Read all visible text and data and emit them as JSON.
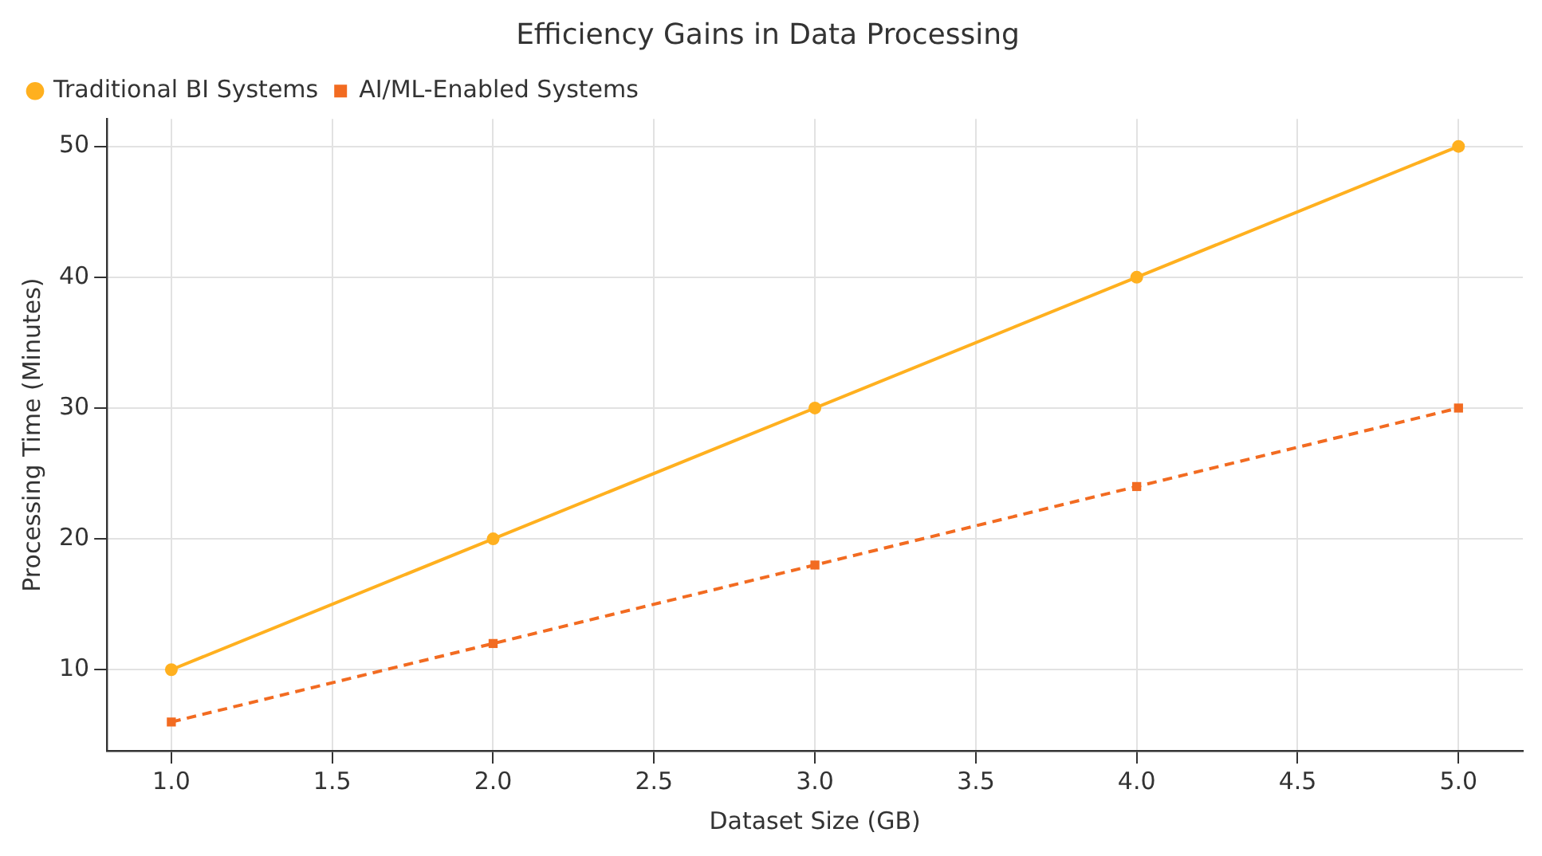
{
  "chart_data": {
    "type": "line",
    "title": "Efficiency Gains in Data Processing",
    "xlabel": "Dataset Size (GB)",
    "ylabel": "Processing Time (Minutes)",
    "x": [
      1,
      2,
      3,
      4,
      5
    ],
    "series": [
      {
        "name": "Traditional BI Systems",
        "color": "#ffb01f",
        "values": [
          10,
          20,
          30,
          40,
          50
        ],
        "marker": "circle",
        "line_style": "solid"
      },
      {
        "name": "AI/ML-Enabled Systems",
        "color": "#f26b21",
        "values": [
          6,
          12,
          18,
          24,
          30
        ],
        "marker": "square",
        "line_style": "dashed"
      }
    ],
    "xlim": [
      0.8,
      5.2
    ],
    "ylim": [
      3.8,
      52.1
    ],
    "xticks": [
      {
        "value": 1,
        "label": "1.0"
      },
      {
        "value": 1.5,
        "label": "1.5"
      },
      {
        "value": 2,
        "label": "2.0"
      },
      {
        "value": 2.5,
        "label": "2.5"
      },
      {
        "value": 3,
        "label": "3.0"
      },
      {
        "value": 3.5,
        "label": "3.5"
      },
      {
        "value": 4,
        "label": "4.0"
      },
      {
        "value": 4.5,
        "label": "4.5"
      },
      {
        "value": 5,
        "label": "5.0"
      }
    ],
    "yticks": [
      10,
      20,
      30,
      40,
      50
    ],
    "grid": true,
    "legend": "top left"
  }
}
